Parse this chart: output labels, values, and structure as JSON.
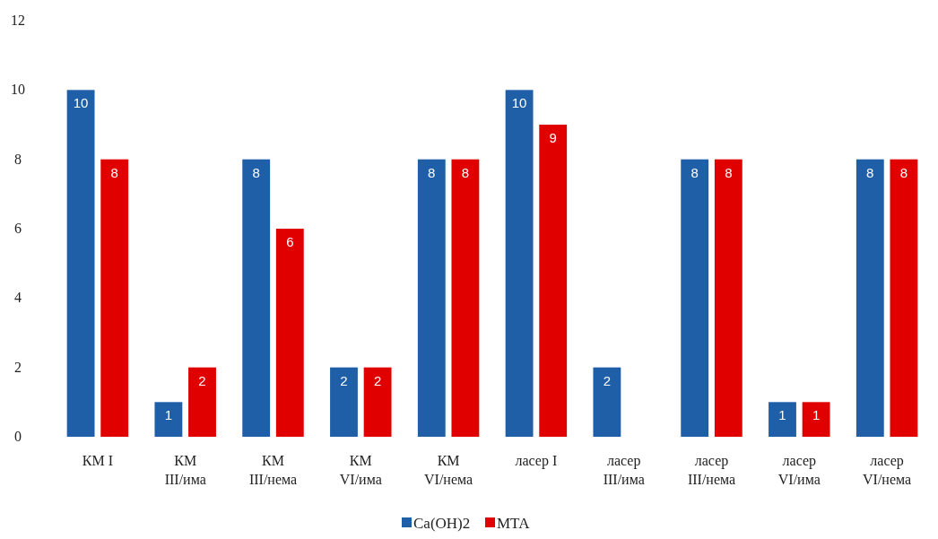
{
  "chart_data": {
    "type": "bar",
    "categories": [
      "КМ I",
      "КМ\nIII/има",
      "КМ\nIII/нема",
      "КМ\nVI/има",
      "КМ\nVI/нема",
      "ласер I",
      "ласер\nIII/има",
      "ласер\nIII/нема",
      "ласер\nVI/има",
      "ласер\nVI/нема"
    ],
    "series": [
      {
        "name": "Ca(OH)2",
        "color": "#1f5fa8",
        "values": [
          10,
          1,
          8,
          2,
          8,
          10,
          2,
          8,
          1,
          8
        ]
      },
      {
        "name": "MTA",
        "color": "#e00000",
        "values": [
          8,
          2,
          6,
          2,
          8,
          9,
          null,
          8,
          1,
          8
        ]
      }
    ],
    "ylim": [
      0,
      12
    ],
    "yticks": [
      0,
      2,
      4,
      6,
      8,
      10,
      12
    ],
    "grid": false,
    "legend": "bottom",
    "data_labels": true
  }
}
